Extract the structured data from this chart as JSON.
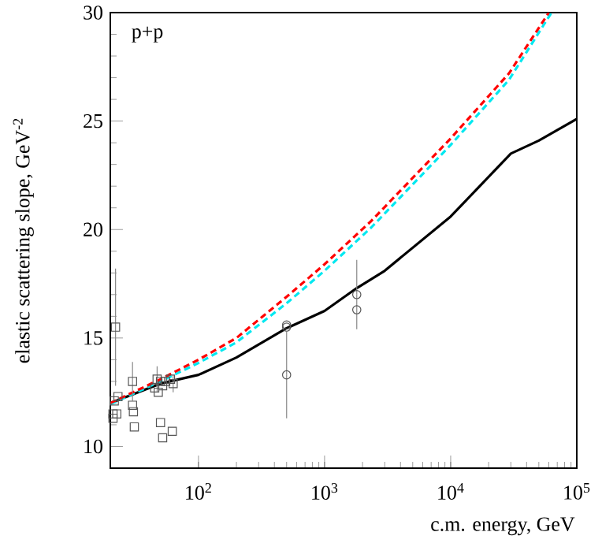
{
  "chart_data": {
    "type": "line",
    "xlabel": "c.m. energy, GeV",
    "ylabel": "elastic scattering slope, GeV$^{-2}$",
    "annotations": [
      "p+p"
    ],
    "log": "x",
    "xlim": [
      20,
      100000
    ],
    "ylim": [
      9,
      30
    ],
    "xticks": [
      {
        "value": 100,
        "label": "10$^{2}$"
      },
      {
        "value": 1000,
        "label": "10$^{3}$"
      },
      {
        "value": 10000,
        "label": "10$^{4}$"
      },
      {
        "value": 100000,
        "label": "10$^{5}$"
      }
    ],
    "yticks": [
      10,
      15,
      20,
      25,
      30
    ],
    "series": [
      {
        "color": "#000000",
        "line_style": "solid",
        "marker": "none",
        "x": [
          20,
          30,
          50,
          100,
          200,
          500,
          1000,
          1800,
          3000,
          10000,
          30000,
          50000,
          100000
        ],
        "values": [
          12.0,
          12.4,
          12.9,
          13.3,
          14.1,
          15.45,
          16.25,
          17.3,
          18.1,
          20.6,
          23.5,
          24.1,
          25.1
        ]
      },
      {
        "color": "#00e8f0",
        "line_style": "dashed",
        "marker": "none",
        "x": [
          20,
          50,
          100,
          200,
          500,
          1000,
          2350,
          10000,
          29000,
          63000
        ],
        "values": [
          11.95,
          13.0,
          13.85,
          14.8,
          16.6,
          18.1,
          20.1,
          23.9,
          26.9,
          30
        ]
      },
      {
        "color": "#ff0000",
        "line_style": "dashed",
        "marker": "none",
        "x": [
          20,
          50,
          100,
          200,
          500,
          1000,
          2350,
          10000,
          29000,
          60000
        ],
        "values": [
          12.0,
          13.1,
          14.0,
          15.0,
          16.9,
          18.4,
          20.4,
          24.2,
          27.2,
          30
        ]
      },
      {
        "type": "scatter",
        "color": "#555555",
        "marker": "square",
        "x": [
          21,
          21,
          21.5,
          22,
          22.5,
          23,
          30,
          30,
          30.5,
          31,
          45,
          47,
          48,
          50,
          52,
          55,
          60,
          63,
          50,
          52,
          62
        ],
        "values": [
          11.5,
          11.3,
          12.1,
          15.5,
          11.5,
          12.3,
          13.0,
          11.9,
          11.6,
          10.9,
          12.7,
          13.1,
          12.5,
          13.0,
          12.8,
          13.0,
          13.1,
          12.9,
          11.1,
          10.4,
          10.7
        ],
        "errors": [
          null,
          null,
          null,
          2.7,
          null,
          null,
          0.9,
          null,
          null,
          null,
          null,
          0.6,
          null,
          null,
          null,
          null,
          null,
          0.4,
          null,
          null,
          null
        ]
      },
      {
        "type": "scatter",
        "color": "#555555",
        "marker": "circle",
        "x": [
          500,
          500,
          500,
          1800,
          1800
        ],
        "values": [
          15.5,
          15.6,
          13.3,
          17.0,
          16.3
        ],
        "errors": [
          null,
          null,
          2.0,
          1.6,
          null
        ]
      }
    ]
  }
}
